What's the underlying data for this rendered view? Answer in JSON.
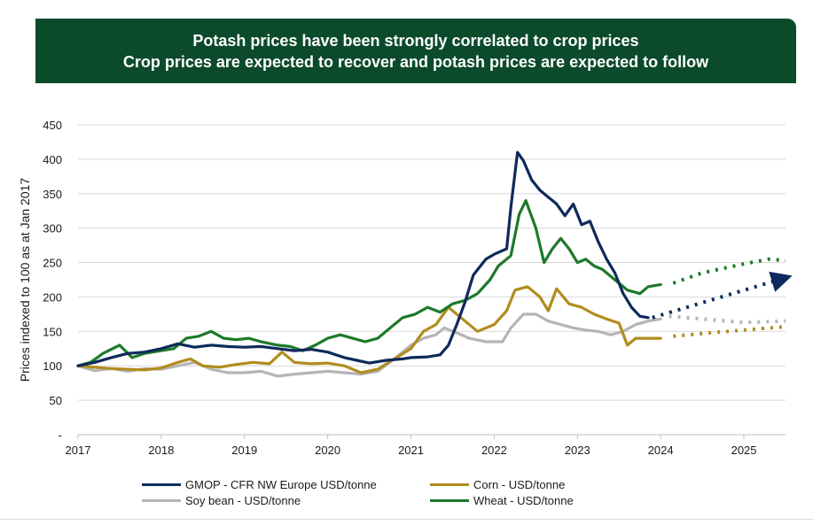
{
  "banner": {
    "line1": "Potash prices have been strongly correlated to crop prices",
    "line2": "Crop prices are expected to recover and potash prices are expected to follow"
  },
  "colors": {
    "banner_bg": "#0c4a2c",
    "gmop": "#0e2a5c",
    "corn": "#b08d1e",
    "soy": "#b5b5b5",
    "wheat": "#1d7a2a"
  },
  "chart_data": {
    "type": "line",
    "ylabel": "Prices indexed to 100 as at Jan 2017",
    "xlabel": "",
    "ylim": [
      0,
      450
    ],
    "xlim": [
      2017,
      2025.5
    ],
    "y_ticks": [
      {
        "value": 0,
        "label": "-"
      },
      {
        "value": 50,
        "label": "50"
      },
      {
        "value": 100,
        "label": "100"
      },
      {
        "value": 150,
        "label": "150"
      },
      {
        "value": 200,
        "label": "200"
      },
      {
        "value": 250,
        "label": "250"
      },
      {
        "value": 300,
        "label": "300"
      },
      {
        "value": 350,
        "label": "350"
      },
      {
        "value": 400,
        "label": "400"
      },
      {
        "value": 450,
        "label": "450"
      }
    ],
    "x_ticks": [
      {
        "value": 2017,
        "label": "2017"
      },
      {
        "value": 2018,
        "label": "2018"
      },
      {
        "value": 2019,
        "label": "2019"
      },
      {
        "value": 2020,
        "label": "2020"
      },
      {
        "value": 2021,
        "label": "2021"
      },
      {
        "value": 2022,
        "label": "2022"
      },
      {
        "value": 2023,
        "label": "2023"
      },
      {
        "value": 2024,
        "label": "2024"
      },
      {
        "value": 2025,
        "label": "2025"
      }
    ],
    "grid": "horizontal",
    "legend_position": "bottom",
    "series": [
      {
        "key": "gmop",
        "name": "GMOP - CFR NW Europe USD/tonne",
        "color": "#0e2a5c",
        "x": [
          2017.0,
          2017.2,
          2017.4,
          2017.6,
          2017.8,
          2018.0,
          2018.2,
          2018.4,
          2018.6,
          2018.8,
          2019.0,
          2019.2,
          2019.4,
          2019.6,
          2019.8,
          2020.0,
          2020.2,
          2020.35,
          2020.5,
          2020.7,
          2020.9,
          2021.0,
          2021.2,
          2021.35,
          2021.45,
          2021.55,
          2021.65,
          2021.75,
          2021.9,
          2022.0,
          2022.15,
          2022.2,
          2022.28,
          2022.35,
          2022.45,
          2022.55,
          2022.65,
          2022.75,
          2022.85,
          2022.95,
          2023.05,
          2023.15,
          2023.25,
          2023.35,
          2023.45,
          2023.55,
          2023.65,
          2023.75,
          2023.85
        ],
        "y": [
          100,
          105,
          112,
          118,
          120,
          125,
          132,
          127,
          130,
          128,
          127,
          128,
          125,
          122,
          124,
          120,
          112,
          108,
          104,
          108,
          110,
          112,
          113,
          116,
          130,
          160,
          193,
          232,
          255,
          262,
          270,
          330,
          410,
          398,
          370,
          355,
          345,
          335,
          318,
          335,
          305,
          310,
          280,
          255,
          235,
          205,
          185,
          172,
          170
        ],
        "dashed": false
      },
      {
        "key": "corn",
        "name": "Corn - USD/tonne",
        "color": "#b08d1e",
        "x": [
          2017.0,
          2017.2,
          2017.4,
          2017.6,
          2017.8,
          2018.0,
          2018.2,
          2018.35,
          2018.5,
          2018.7,
          2018.9,
          2019.1,
          2019.3,
          2019.45,
          2019.6,
          2019.8,
          2020.0,
          2020.2,
          2020.4,
          2020.6,
          2020.8,
          2021.0,
          2021.15,
          2021.3,
          2021.45,
          2021.6,
          2021.8,
          2022.0,
          2022.15,
          2022.25,
          2022.4,
          2022.55,
          2022.65,
          2022.75,
          2022.9,
          2023.05,
          2023.2,
          2023.35,
          2023.5,
          2023.6,
          2023.7,
          2023.8,
          2023.9,
          2024.0
        ],
        "y": [
          100,
          98,
          96,
          95,
          94,
          97,
          105,
          110,
          100,
          98,
          102,
          105,
          103,
          120,
          105,
          103,
          104,
          100,
          90,
          95,
          110,
          125,
          150,
          160,
          185,
          170,
          150,
          160,
          180,
          210,
          215,
          200,
          180,
          212,
          190,
          185,
          175,
          168,
          162,
          130,
          140,
          140,
          140,
          140
        ],
        "dashed": false
      },
      {
        "key": "soy",
        "name": "Soy bean - USD/tonne",
        "color": "#b5b5b5",
        "x": [
          2017.0,
          2017.2,
          2017.4,
          2017.6,
          2017.8,
          2018.0,
          2018.2,
          2018.4,
          2018.6,
          2018.8,
          2019.0,
          2019.2,
          2019.4,
          2019.6,
          2019.8,
          2020.0,
          2020.2,
          2020.4,
          2020.6,
          2020.8,
          2021.0,
          2021.15,
          2021.3,
          2021.4,
          2021.55,
          2021.7,
          2021.9,
          2022.1,
          2022.2,
          2022.35,
          2022.5,
          2022.65,
          2022.8,
          2022.95,
          2023.1,
          2023.25,
          2023.4,
          2023.55,
          2023.7,
          2023.85,
          2024.0
        ],
        "y": [
          100,
          93,
          96,
          92,
          96,
          95,
          100,
          105,
          95,
          90,
          90,
          92,
          85,
          88,
          90,
          92,
          90,
          88,
          92,
          110,
          130,
          140,
          145,
          155,
          148,
          140,
          135,
          135,
          155,
          175,
          175,
          165,
          160,
          155,
          152,
          150,
          145,
          150,
          160,
          165,
          168
        ],
        "dashed": false
      },
      {
        "key": "wheat",
        "name": "Wheat - USD/tonne",
        "color": "#1d7a2a",
        "x": [
          2017.0,
          2017.15,
          2017.3,
          2017.5,
          2017.65,
          2017.8,
          2018.0,
          2018.15,
          2018.3,
          2018.45,
          2018.6,
          2018.75,
          2018.9,
          2019.05,
          2019.2,
          2019.4,
          2019.55,
          2019.7,
          2019.85,
          2020.0,
          2020.15,
          2020.3,
          2020.45,
          2020.6,
          2020.75,
          2020.9,
          2021.05,
          2021.2,
          2021.35,
          2021.5,
          2021.65,
          2021.8,
          2021.95,
          2022.05,
          2022.2,
          2022.3,
          2022.38,
          2022.5,
          2022.6,
          2022.7,
          2022.8,
          2022.9,
          2023.0,
          2023.1,
          2023.2,
          2023.3,
          2023.45,
          2023.6,
          2023.75,
          2023.85,
          2024.0
        ],
        "y": [
          100,
          105,
          118,
          130,
          112,
          118,
          122,
          125,
          140,
          143,
          150,
          140,
          138,
          140,
          135,
          130,
          128,
          122,
          130,
          140,
          145,
          140,
          135,
          140,
          155,
          170,
          175,
          185,
          178,
          190,
          195,
          205,
          225,
          245,
          260,
          320,
          340,
          300,
          250,
          270,
          285,
          270,
          250,
          255,
          245,
          240,
          225,
          210,
          205,
          215,
          218
        ],
        "dashed": false
      }
    ],
    "forecasts": [
      {
        "key": "gmop",
        "x": [
          2023.9,
          2025.5
        ],
        "y": [
          170,
          228
        ],
        "arrow": true
      },
      {
        "key": "wheat",
        "x": [
          2024.15,
          2024.5,
          2025.0,
          2025.3,
          2025.5
        ],
        "y": [
          220,
          235,
          248,
          255,
          253
        ],
        "arrow": false
      },
      {
        "key": "soy",
        "x": [
          2024.1,
          2024.5,
          2025.0,
          2025.5
        ],
        "y": [
          172,
          168,
          163,
          165
        ],
        "arrow": false
      },
      {
        "key": "corn",
        "x": [
          2024.15,
          2024.6,
          2025.0,
          2025.5
        ],
        "y": [
          143,
          148,
          152,
          157
        ],
        "arrow": false
      }
    ]
  },
  "legend": [
    {
      "label": "GMOP - CFR NW Europe USD/tonne",
      "color": "#0e2a5c"
    },
    {
      "label": "Corn - USD/tonne",
      "color": "#b08d1e"
    },
    {
      "label": "Soy bean - USD/tonne",
      "color": "#b5b5b5"
    },
    {
      "label": "Wheat - USD/tonne",
      "color": "#1d7a2a"
    }
  ]
}
